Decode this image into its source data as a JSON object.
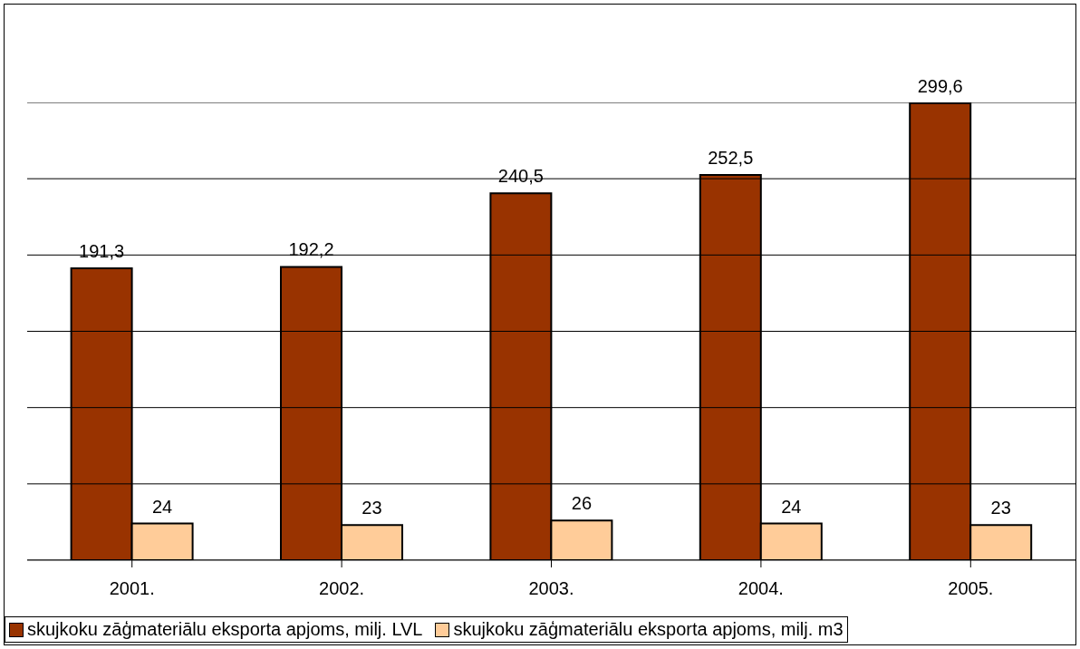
{
  "chart_data": {
    "type": "bar",
    "categories": [
      "2001.",
      "2002.",
      "2003.",
      "2004.",
      "2005."
    ],
    "series": [
      {
        "name": "skujkoku zāģmateriālu eksporta apjoms, milj. LVL",
        "color": "#993300",
        "values": [
          191.3,
          192.2,
          240.5,
          252.5,
          299.6
        ],
        "value_labels": [
          "191,3",
          "192,2",
          "240,5",
          "252,5",
          "299,6"
        ]
      },
      {
        "name": "skujkoku zāģmateriālu eksporta apjoms, milj. m3",
        "color": "#ffcc99",
        "values": [
          24,
          23,
          26,
          24,
          23
        ],
        "value_labels": [
          "24",
          "23",
          "26",
          "24",
          "23"
        ]
      }
    ],
    "yticks": [
      {
        "value": 0,
        "label": null
      },
      {
        "value": 50,
        "label": null
      },
      {
        "value": 100,
        "label": null
      },
      {
        "value": 150,
        "label": null
      },
      {
        "value": 200,
        "label": null
      },
      {
        "value": 250,
        "label": null
      },
      {
        "value": 300,
        "label": null
      }
    ],
    "tick_labels": "x",
    "grid": "y",
    "legend": "bottom"
  }
}
